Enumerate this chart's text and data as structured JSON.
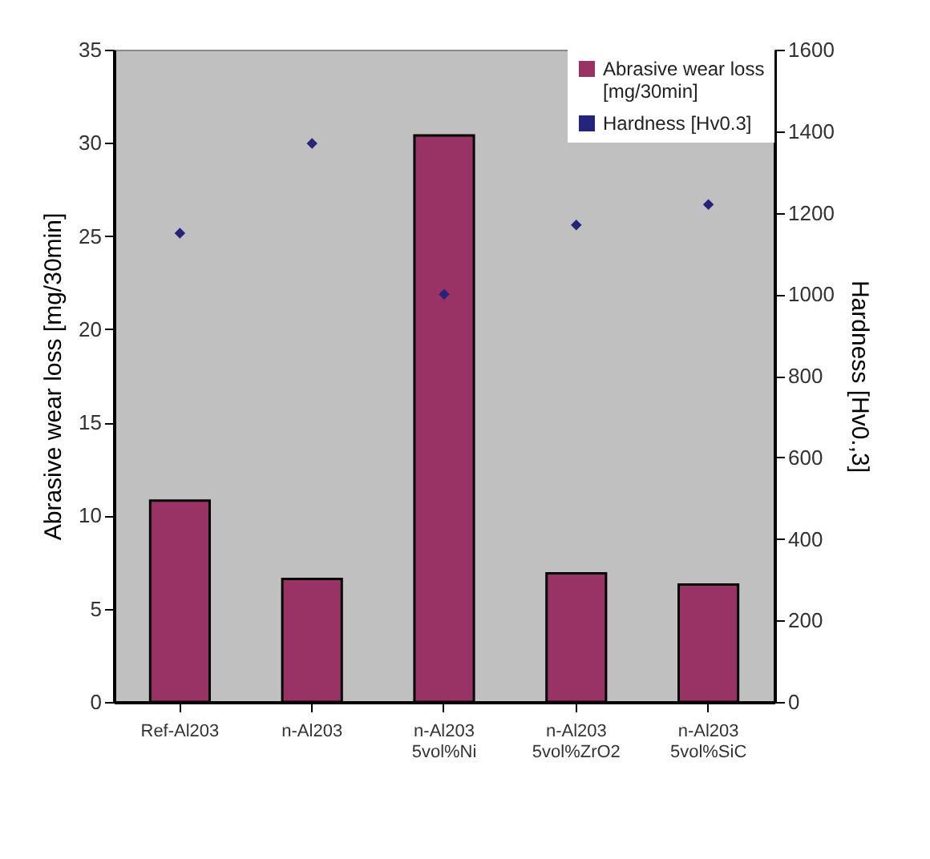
{
  "chart_data": {
    "type": "bar",
    "categories": [
      "Ref-Al203",
      "n-Al203",
      "n-Al203\n5vol%Ni",
      "n-Al203\n5vol%ZrO2",
      "n-Al203\n5vol%SiC"
    ],
    "series": [
      {
        "name": "Abrasive wear loss [mg/30min]",
        "color": "#993366",
        "values": [
          10.8,
          6.6,
          30.4,
          6.9,
          6.3
        ]
      },
      {
        "name": "Hardness [Hv0.3]",
        "type": "scatter",
        "axis": "y2",
        "marker": "diamond",
        "color": "#24247a",
        "values": [
          1150,
          1370,
          1000,
          1170,
          1220
        ]
      }
    ],
    "ylabel": "Abrasive wear loss [mg/30min]",
    "y2label": "Hardness [Hv0.,3]",
    "ylim": [
      0,
      35
    ],
    "yticks": [
      0,
      5,
      10,
      15,
      20,
      25,
      30,
      35
    ],
    "y2lim": [
      0,
      1600
    ],
    "y2ticks": [
      0,
      200,
      400,
      600,
      800,
      1000,
      1200,
      1400,
      1600
    ],
    "legend": "top right",
    "grid": false
  }
}
